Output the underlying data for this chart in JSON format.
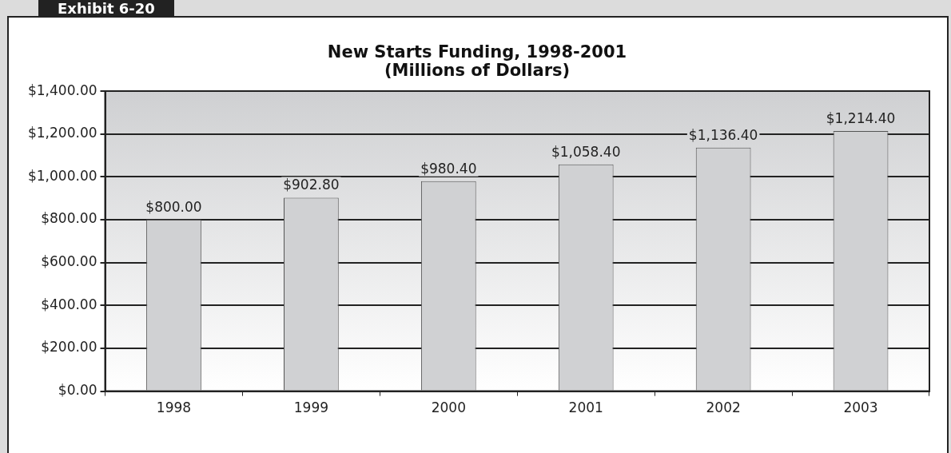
{
  "chart_data": {
    "type": "bar",
    "title": "New Starts Funding, 1998-2001\n(Millions of Dollars)",
    "annotations": [
      "Exhibit 6-20"
    ],
    "categories": [
      "1998",
      "1999",
      "2000",
      "2001",
      "2002",
      "2003"
    ],
    "values": [
      800,
      902.8,
      980.4,
      1058.4,
      1136.4,
      1214.4
    ],
    "value_labels": [
      "$800.00",
      "$902.80",
      "$980.40",
      "$1,058.40",
      "$1,136.40",
      "$1,214.40"
    ],
    "color": "#d0d1d3",
    "ylim": [
      0,
      1400
    ],
    "yticks": [
      {
        "value": 0,
        "label": "$0.00"
      },
      {
        "value": 200,
        "label": "$200.00"
      },
      {
        "value": 400,
        "label": "$400.00"
      },
      {
        "value": 600,
        "label": "$600.00"
      },
      {
        "value": 800,
        "label": "$800.00"
      },
      {
        "value": 1000,
        "label": "$1,000.00"
      },
      {
        "value": 1200,
        "label": "$1,200.00"
      },
      {
        "value": 1400,
        "label": "$1,400.00"
      }
    ],
    "grid": "y"
  }
}
